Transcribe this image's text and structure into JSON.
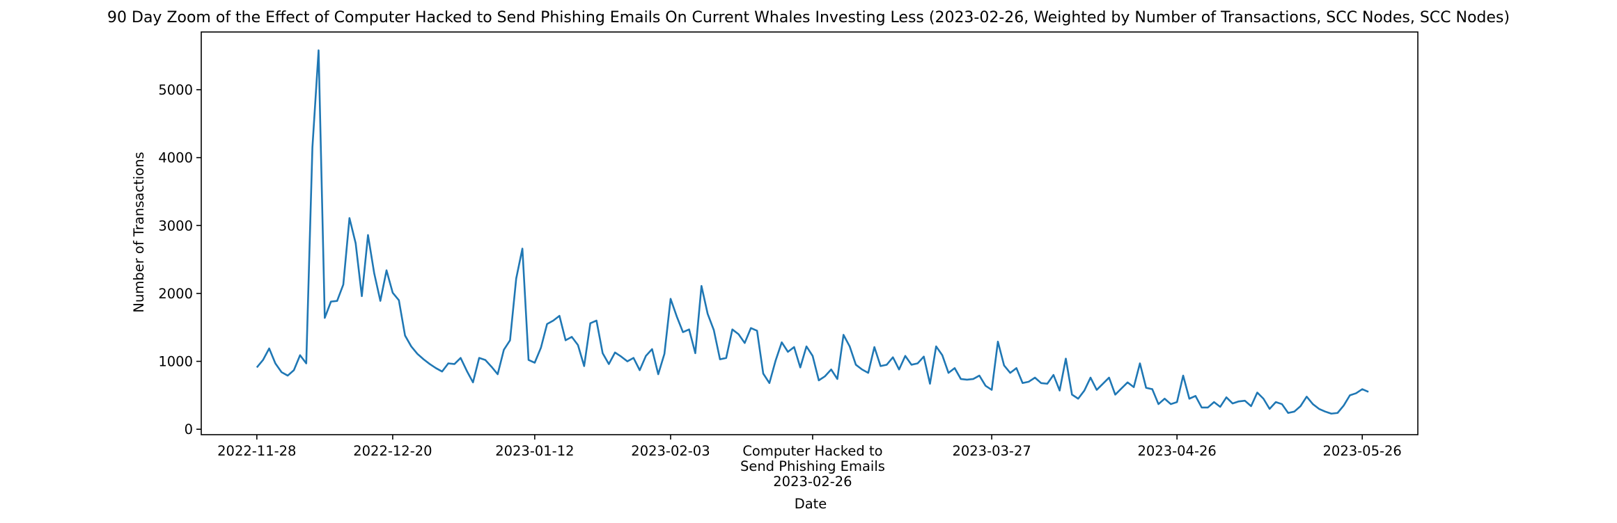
{
  "chart_data": {
    "type": "line",
    "title": "90 Day Zoom of the Effect of Computer Hacked to Send Phishing Emails On Current Whales Investing Less (2023-02-26, Weighted by Number of Transactions, SCC Nodes, SCC Nodes)",
    "xlabel": "Date",
    "ylabel": "Number of Transactions",
    "grid": false,
    "line_color": "#1f77b4",
    "xlim": [
      "2022-11-19",
      "2023-06-04"
    ],
    "ylim": [
      -80,
      5850
    ],
    "x_ticks": [
      "2022-11-28",
      "2022-12-20",
      "2023-01-12",
      "2023-02-03",
      "2023-02-26",
      "2023-03-27",
      "2023-04-26",
      "2023-05-26"
    ],
    "x_tick_labels": [
      "2022-11-28",
      "2022-12-20",
      "2023-01-12",
      "2023-02-03",
      "",
      "2023-03-27",
      "2023-04-26",
      "2023-05-26"
    ],
    "y_ticks": [
      0,
      1000,
      2000,
      3000,
      4000,
      5000
    ],
    "y_tick_labels": [
      "0",
      "1000",
      "2000",
      "3000",
      "4000",
      "5000"
    ],
    "event": {
      "date": "2023-02-26",
      "label_lines": [
        "Computer Hacked to",
        "Send Phishing Emails",
        "2023-02-26"
      ]
    },
    "start_date": "2022-11-28",
    "series": [
      {
        "values": [
          910,
          1020,
          1190,
          970,
          840,
          790,
          870,
          1090,
          970,
          4150,
          5580,
          1640,
          1880,
          1890,
          2130,
          3110,
          2740,
          1960,
          2860,
          2300,
          1890,
          2340,
          2010,
          1900,
          1380,
          1220,
          1110,
          1030,
          960,
          900,
          850,
          970,
          960,
          1050,
          860,
          690,
          1050,
          1020,
          920,
          810,
          1170,
          1310,
          2220,
          2660,
          1020,
          980,
          1200,
          1550,
          1600,
          1670,
          1310,
          1360,
          1240,
          930,
          1560,
          1600,
          1120,
          960,
          1130,
          1070,
          1000,
          1050,
          870,
          1080,
          1180,
          810,
          1110,
          1920,
          1660,
          1430,
          1470,
          1120,
          2110,
          1700,
          1460,
          1030,
          1050,
          1470,
          1400,
          1270,
          1490,
          1450,
          820,
          680,
          1010,
          1280,
          1140,
          1210,
          910,
          1220,
          1080,
          720,
          780,
          880,
          740,
          1390,
          1220,
          950,
          880,
          830,
          1210,
          930,
          950,
          1060,
          880,
          1080,
          950,
          970,
          1070,
          670,
          1220,
          1090,
          830,
          900,
          740,
          730,
          740,
          790,
          640,
          580,
          1290,
          940,
          830,
          900,
          680,
          700,
          760,
          680,
          670,
          800,
          570,
          1040,
          510,
          450,
          570,
          760,
          580,
          670,
          760,
          510,
          600,
          690,
          620,
          970,
          610,
          590,
          370,
          450,
          370,
          400,
          790,
          450,
          490,
          320,
          320,
          400,
          330,
          470,
          380,
          410,
          420,
          340,
          540,
          450,
          300,
          400,
          370,
          240,
          260,
          340,
          480,
          370,
          300,
          260,
          230,
          240,
          350,
          500,
          530,
          590,
          550
        ]
      }
    ]
  }
}
